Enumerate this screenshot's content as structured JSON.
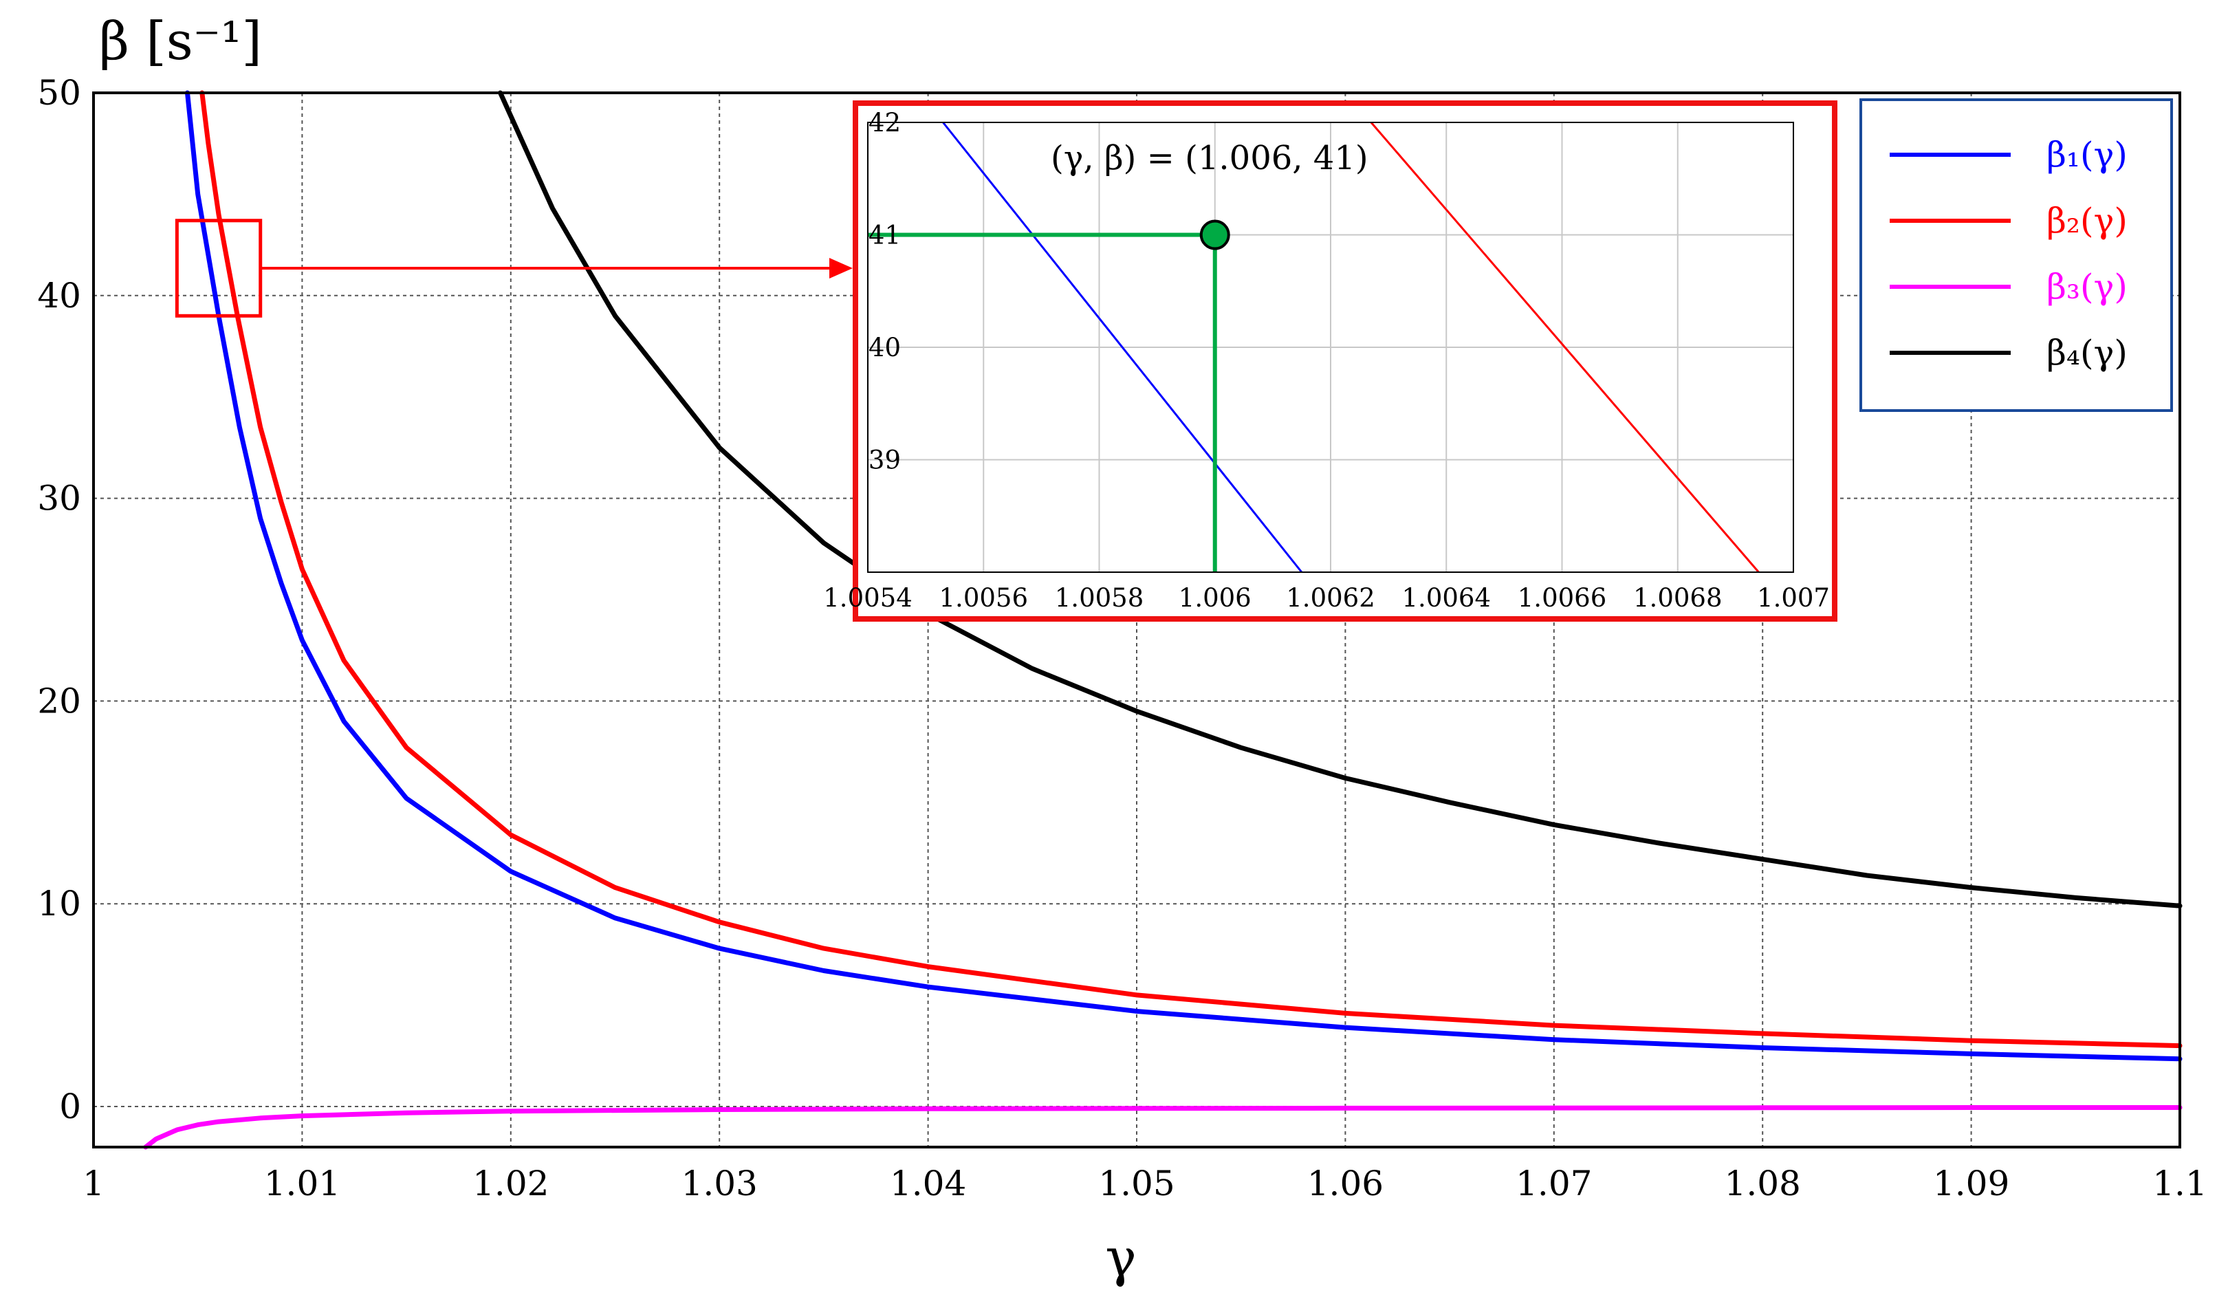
{
  "chart_data": {
    "type": "line",
    "main": {
      "ylabel": "β [s⁻¹]",
      "xlabel": "γ",
      "xlim": [
        1.0,
        1.1
      ],
      "ylim": [
        -2,
        50
      ],
      "xticks": [
        1.0,
        1.01,
        1.02,
        1.03,
        1.04,
        1.05,
        1.06,
        1.07,
        1.08,
        1.09,
        1.1
      ],
      "xtick_labels": [
        "1",
        "1.01",
        "1.02",
        "1.03",
        "1.04",
        "1.05",
        "1.06",
        "1.07",
        "1.08",
        "1.09",
        "1.1"
      ],
      "yticks": [
        0,
        10,
        20,
        30,
        40,
        50
      ],
      "ytick_labels": [
        "0",
        "10",
        "20",
        "30",
        "40",
        "50"
      ],
      "grid": true,
      "series": [
        {
          "name": "β₁(γ)",
          "color": "#0000ff",
          "x": [
            1.0045,
            1.005,
            1.0055,
            1.006,
            1.007,
            1.008,
            1.009,
            1.01,
            1.012,
            1.015,
            1.02,
            1.025,
            1.03,
            1.035,
            1.04,
            1.05,
            1.06,
            1.07,
            1.08,
            1.09,
            1.1
          ],
          "y": [
            50,
            45,
            42,
            39,
            33.5,
            29,
            25.8,
            23,
            19,
            15.2,
            11.6,
            9.3,
            7.8,
            6.7,
            5.9,
            4.7,
            3.9,
            3.3,
            2.9,
            2.6,
            2.35
          ]
        },
        {
          "name": "β₂(γ)",
          "color": "#ff0000",
          "x": [
            1.0052,
            1.0055,
            1.006,
            1.0069,
            1.008,
            1.009,
            1.01,
            1.012,
            1.015,
            1.02,
            1.025,
            1.03,
            1.035,
            1.04,
            1.05,
            1.06,
            1.07,
            1.08,
            1.09,
            1.1
          ],
          "y": [
            50,
            47.5,
            44,
            39,
            33.5,
            29.8,
            26.5,
            22,
            17.7,
            13.4,
            10.8,
            9.1,
            7.8,
            6.9,
            5.5,
            4.6,
            4.0,
            3.6,
            3.25,
            3.0
          ]
        },
        {
          "name": "β₃(γ)",
          "color": "#ff00ff",
          "x": [
            1.0025,
            1.003,
            1.004,
            1.005,
            1.006,
            1.008,
            1.01,
            1.015,
            1.02,
            1.03,
            1.04,
            1.05,
            1.06,
            1.07,
            1.08,
            1.09,
            1.1
          ],
          "y": [
            -2.0,
            -1.6,
            -1.15,
            -0.9,
            -0.75,
            -0.57,
            -0.46,
            -0.31,
            -0.23,
            -0.15,
            -0.11,
            -0.09,
            -0.08,
            -0.07,
            -0.06,
            -0.05,
            -0.05
          ]
        },
        {
          "name": "β₄(γ)",
          "color": "#000000",
          "x": [
            1.0195,
            1.022,
            1.025,
            1.03,
            1.035,
            1.04,
            1.045,
            1.05,
            1.055,
            1.06,
            1.065,
            1.07,
            1.075,
            1.08,
            1.085,
            1.09,
            1.095,
            1.1
          ],
          "y": [
            50,
            44.3,
            39.0,
            32.5,
            27.8,
            24.3,
            21.6,
            19.5,
            17.7,
            16.2,
            15.0,
            13.9,
            13.0,
            12.2,
            11.4,
            10.8,
            10.3,
            9.9
          ]
        }
      ]
    },
    "inset": {
      "xlim": [
        1.0054,
        1.007
      ],
      "ylim": [
        38,
        42
      ],
      "xticks": [
        1.0054,
        1.0056,
        1.0058,
        1.006,
        1.0062,
        1.0064,
        1.0066,
        1.0068,
        1.007
      ],
      "xtick_labels": [
        "1.0054",
        "1.0056",
        "1.0058",
        "1.006",
        "1.0062",
        "1.0064",
        "1.0066",
        "1.0068",
        "1.007"
      ],
      "yticks": [
        39,
        40,
        41,
        42
      ],
      "ytick_labels": [
        "39",
        "40",
        "41",
        "42"
      ],
      "series": [
        {
          "name": "β₁(γ)",
          "color": "#0000ff",
          "x": [
            1.00553,
            1.00615
          ],
          "y": [
            42,
            38
          ]
        },
        {
          "name": "β₂(γ)",
          "color": "#ff0000",
          "x": [
            1.00627,
            1.00694
          ],
          "y": [
            42,
            38
          ]
        }
      ],
      "highlight_point": {
        "x": 1.006,
        "y": 41,
        "color": "#00aa44"
      },
      "annotation": "(γ, β) = (1.006, 41)",
      "zoom_region": {
        "x": [
          1.004,
          1.008
        ],
        "y": [
          39,
          43.7
        ]
      }
    },
    "legend": {
      "placement": "top-right",
      "entries": [
        {
          "label": "β₁(γ)",
          "color": "#0000ff"
        },
        {
          "label": "β₂(γ)",
          "color": "#ff0000"
        },
        {
          "label": "β₃(γ)",
          "color": "#ff00ff"
        },
        {
          "label": "β₄(γ)",
          "color": "#000000"
        }
      ]
    }
  }
}
